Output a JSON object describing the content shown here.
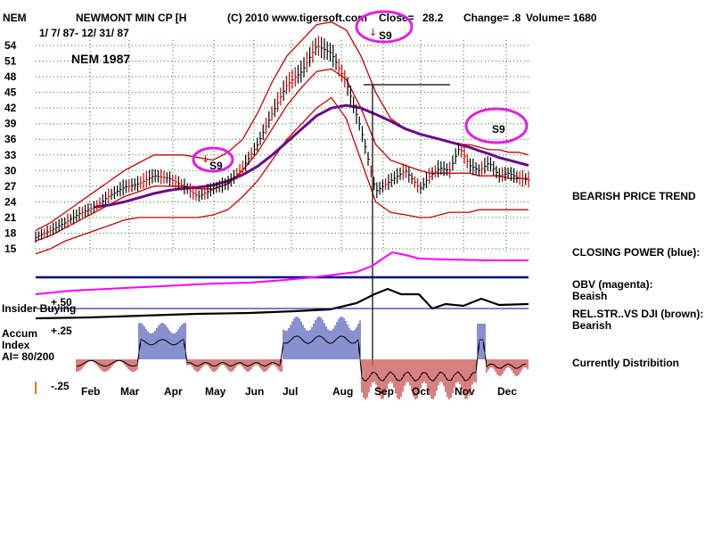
{
  "header": {
    "ticker": "NEM",
    "company": "NEWMONT MIN CP [H",
    "copyright": "(C) 2010 www.tigersoft.com",
    "close_label": "Close=",
    "close_value": "28.2",
    "change_label": "Change= .8",
    "volume_label": "Volume= 1680",
    "date_range": "1/ 7/ 87- 12/ 31/ 87"
  },
  "chart_title": "NEM 1987",
  "annotations": {
    "signal_label": "S9",
    "bearish_price_trend": "BEARISH PRICE TREND",
    "closing_power": "CLOSING POWER (blue):",
    "obv_label": "OBV (magenta):",
    "obv_value": "Beaish",
    "relstr_label": "REL.STR..VS DJI (brown):",
    "relstr_value": "Bearish",
    "currently": "Currently Distribition",
    "insider_buying": "Insider Buying",
    "accum_line1": "Accum",
    "accum_line2": "Index",
    "accum_line3": "AI= 80/200"
  },
  "colors": {
    "price_bars": "#000000",
    "up_ticks": "#cc0000",
    "bands": "#cc0000",
    "moving_avg": "#6a0a8a",
    "grid": "#1a7a1a",
    "obv": "#ff00ff",
    "closing_power": "#000080",
    "relstr": "#000000",
    "accum_pos": "#1020a0",
    "accum_neg": "#b00000",
    "circle": "#e020e0"
  },
  "chart_data": {
    "type": "line",
    "ylim": [
      14,
      56
    ],
    "yticks": [
      "54",
      "51",
      "48",
      "45",
      "42",
      "39",
      "36",
      "33",
      "30",
      "27",
      "24",
      "21",
      "18",
      "15"
    ],
    "ytick_values": [
      54,
      51,
      48,
      45,
      42,
      39,
      36,
      33,
      30,
      27,
      24,
      21,
      18,
      15
    ],
    "months": [
      "Feb",
      "Mar",
      "Apr",
      "May",
      "Jun",
      "Jul",
      "Aug",
      "Sep",
      "Oct",
      "Nov",
      "Dec"
    ],
    "accum_ticks": [
      "+.50",
      "+.25",
      "-.25"
    ],
    "price_x": [
      0,
      0.03,
      0.06,
      0.09,
      0.12,
      0.15,
      0.18,
      0.21,
      0.24,
      0.27,
      0.3,
      0.33,
      0.36,
      0.39,
      0.42,
      0.45,
      0.48,
      0.51,
      0.54,
      0.57,
      0.6,
      0.63,
      0.66,
      0.69,
      0.72,
      0.75,
      0.78,
      0.8,
      0.82,
      0.84,
      0.86,
      0.88,
      0.9,
      0.92,
      0.94,
      0.96,
      0.98,
      1.0
    ],
    "price_close": [
      17.2,
      18.5,
      20.0,
      21.8,
      23.0,
      25.2,
      26.8,
      27.5,
      29.0,
      28.5,
      27.0,
      25.0,
      26.5,
      27.5,
      30.5,
      35.0,
      41.0,
      46.5,
      49.0,
      54.0,
      52.5,
      47.0,
      38.0,
      26.0,
      28.0,
      30.0,
      26.5,
      29.0,
      30.5,
      30.0,
      34.5,
      31.0,
      30.0,
      31.5,
      29.0,
      29.5,
      28.5,
      28.2
    ],
    "band_upper": [
      18.5,
      20.0,
      22.0,
      24.0,
      26.0,
      28.0,
      30.0,
      31.5,
      33.0,
      33.0,
      33.0,
      32.5,
      32.0,
      33.5,
      36.0,
      41.0,
      47.0,
      52.0,
      55.0,
      58.0,
      58.5,
      57.0,
      52.0,
      45.0,
      40.0,
      38.0,
      37.0,
      36.5,
      36.0,
      35.5,
      35.0,
      35.0,
      34.5,
      34.0,
      34.0,
      33.5,
      33.5,
      33.0
    ],
    "band_mid": [
      16.5,
      17.5,
      19.0,
      20.5,
      22.0,
      23.5,
      25.0,
      26.0,
      27.0,
      27.0,
      27.0,
      26.5,
      26.5,
      27.5,
      30.0,
      33.5,
      38.0,
      42.5,
      46.0,
      49.0,
      49.5,
      47.5,
      42.0,
      35.0,
      32.0,
      31.0,
      30.0,
      29.5,
      29.5,
      29.5,
      29.5,
      29.5,
      29.0,
      29.0,
      29.0,
      28.5,
      28.5,
      28.5
    ],
    "band_lower": [
      14.0,
      15.0,
      16.5,
      17.5,
      18.5,
      19.5,
      20.5,
      21.0,
      21.0,
      21.0,
      21.0,
      21.0,
      21.5,
      22.5,
      25.0,
      28.0,
      32.0,
      36.0,
      39.0,
      42.0,
      44.0,
      40.0,
      32.0,
      24.0,
      22.0,
      21.5,
      21.0,
      21.0,
      21.5,
      22.0,
      22.0,
      22.0,
      22.5,
      22.5,
      22.5,
      22.5,
      22.5,
      22.5
    ],
    "ma50": [
      null,
      null,
      null,
      null,
      23.0,
      23.4,
      24.0,
      24.8,
      25.6,
      26.2,
      26.6,
      26.8,
      27.2,
      28.0,
      29.2,
      30.8,
      33.0,
      35.5,
      38.0,
      40.5,
      42.0,
      42.5,
      42.0,
      40.8,
      39.5,
      38.0,
      37.0,
      36.5,
      36.0,
      35.5,
      35.0,
      34.5,
      33.8,
      33.2,
      32.5,
      32.0,
      31.5,
      31.0
    ]
  }
}
